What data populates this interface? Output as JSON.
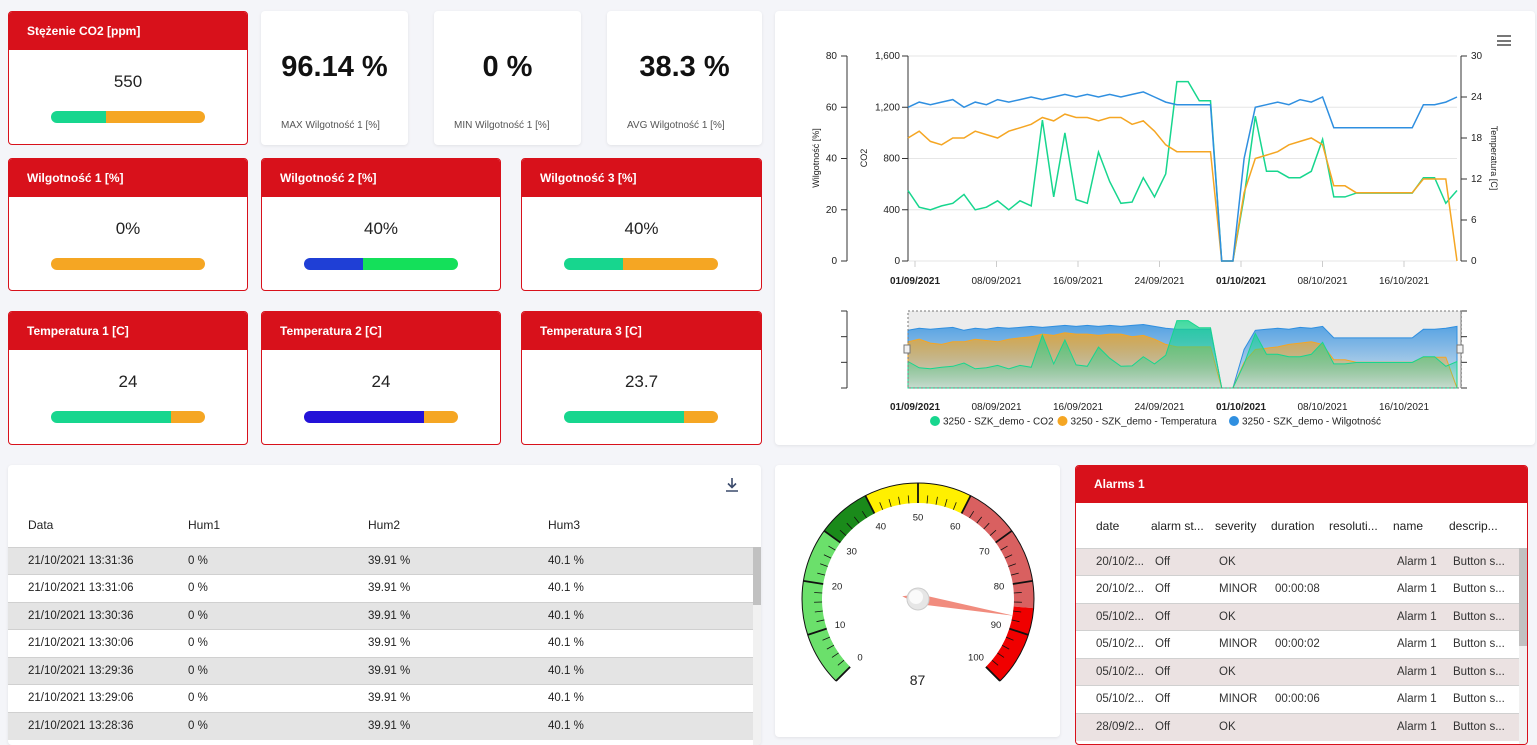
{
  "co2_card": {
    "title": "Stężenie CO2 [ppm]",
    "value": "550",
    "fraction": 0.36
  },
  "stats": [
    {
      "value": "96.14 %",
      "label": "MAX Wilgotność 1 [%]"
    },
    {
      "value": "0 %",
      "label": "MIN Wilgotność 1 [%]"
    },
    {
      "value": "38.3 %",
      "label": "AVG Wilgotność 1 [%]"
    }
  ],
  "humidity_cards": [
    {
      "title": "Wilgotność 1 [%]",
      "value": "0%",
      "fraction": 0.0,
      "fill": "#f5a623",
      "rest": "#f5a623"
    },
    {
      "title": "Wilgotność 2 [%]",
      "value": "40%",
      "fraction": 0.38,
      "fill": "#1f3fd6",
      "rest": "#14e05a"
    },
    {
      "title": "Wilgotność 3 [%]",
      "value": "40%",
      "fraction": 0.38,
      "fill": "#17d68e",
      "rest": "#f5a623"
    }
  ],
  "temperature_cards": [
    {
      "title": "Temperatura 1 [C]",
      "value": "24",
      "fraction": 0.78,
      "fill": "#17d68e",
      "rest": "#f5a623"
    },
    {
      "title": "Temperatura 2 [C]",
      "value": "24",
      "fraction": 0.78,
      "fill": "#2312d8",
      "rest": "#f5a623"
    },
    {
      "title": "Temperatura 3 [C]",
      "value": "23.7",
      "fraction": 0.78,
      "fill": "#17d68e",
      "rest": "#f5a623"
    }
  ],
  "colors": {
    "brand_red": "#d8111b",
    "co2": "#17d68e",
    "temperature": "#f5a623",
    "humidity": "#2f8fe0"
  },
  "chart_data": {
    "type": "line",
    "x_ticks": [
      "01/09/2021",
      "08/09/2021",
      "16/09/2021",
      "24/09/2021",
      "01/10/2021",
      "08/10/2021",
      "16/10/2021"
    ],
    "axes": {
      "humidity": {
        "label": "Wilgotność [%]",
        "ticks": [
          "80",
          "60",
          "40",
          "20",
          "0"
        ],
        "range": [
          0,
          80
        ]
      },
      "co2": {
        "label": "CO2",
        "ticks": [
          "1,600",
          "1,200",
          "800",
          "400",
          "0"
        ],
        "range": [
          0,
          1600
        ]
      },
      "temperature": {
        "label": "Temperatura [C]",
        "ticks": [
          "30",
          "24",
          "18",
          "12",
          "6",
          "0"
        ],
        "range": [
          0,
          30
        ]
      }
    },
    "series": [
      {
        "name": "3250 - SZK_demo - CO2",
        "color": "#17d68e",
        "axis": "co2",
        "points": [
          [
            0,
            550
          ],
          [
            1,
            420
          ],
          [
            2,
            400
          ],
          [
            3,
            430
          ],
          [
            4,
            450
          ],
          [
            5,
            520
          ],
          [
            6,
            400
          ],
          [
            7,
            420
          ],
          [
            8,
            470
          ],
          [
            9,
            400
          ],
          [
            10,
            470
          ],
          [
            11,
            430
          ],
          [
            12,
            1100
          ],
          [
            13,
            500
          ],
          [
            14,
            1000
          ],
          [
            15,
            480
          ],
          [
            16,
            450
          ],
          [
            17,
            850
          ],
          [
            18,
            620
          ],
          [
            19,
            450
          ],
          [
            20,
            460
          ],
          [
            21,
            650
          ],
          [
            22,
            500
          ],
          [
            23,
            680
          ],
          [
            24,
            1400
          ],
          [
            25,
            1400
          ],
          [
            26,
            1250
          ],
          [
            27,
            1250
          ],
          [
            28,
            0
          ],
          [
            29,
            0
          ],
          [
            30,
            500
          ],
          [
            31,
            1130
          ],
          [
            32,
            700
          ],
          [
            33,
            700
          ],
          [
            34,
            650
          ],
          [
            35,
            650
          ],
          [
            36,
            700
          ],
          [
            37,
            950
          ],
          [
            38,
            500
          ],
          [
            39,
            500
          ],
          [
            40,
            530
          ],
          [
            41,
            530
          ],
          [
            42,
            530
          ],
          [
            43,
            530
          ],
          [
            44,
            530
          ],
          [
            45,
            530
          ],
          [
            46,
            650
          ],
          [
            47,
            650
          ],
          [
            48,
            450
          ],
          [
            49,
            550
          ]
        ]
      },
      {
        "name": "3250 - SZK_demo - Temperatura",
        "color": "#f5a623",
        "axis": "temperature",
        "points": [
          [
            0,
            18
          ],
          [
            1,
            19
          ],
          [
            2,
            17.5
          ],
          [
            3,
            17
          ],
          [
            4,
            18
          ],
          [
            5,
            18
          ],
          [
            6,
            19
          ],
          [
            7,
            18.5
          ],
          [
            8,
            18
          ],
          [
            9,
            19
          ],
          [
            10,
            19.5
          ],
          [
            11,
            20
          ],
          [
            12,
            21
          ],
          [
            13,
            20.5
          ],
          [
            14,
            21.5
          ],
          [
            15,
            21
          ],
          [
            16,
            21
          ],
          [
            17,
            20.5
          ],
          [
            18,
            21
          ],
          [
            19,
            21
          ],
          [
            20,
            20
          ],
          [
            21,
            20.5
          ],
          [
            22,
            19
          ],
          [
            23,
            17
          ],
          [
            24,
            16
          ],
          [
            25,
            16
          ],
          [
            26,
            16
          ],
          [
            27,
            16
          ],
          [
            28,
            0
          ],
          [
            29,
            0
          ],
          [
            30,
            10
          ],
          [
            31,
            15
          ],
          [
            32,
            15.5
          ],
          [
            33,
            16
          ],
          [
            34,
            17
          ],
          [
            35,
            17.5
          ],
          [
            36,
            18
          ],
          [
            37,
            17
          ],
          [
            38,
            11
          ],
          [
            39,
            11
          ],
          [
            40,
            10
          ],
          [
            41,
            10
          ],
          [
            42,
            10
          ],
          [
            43,
            10
          ],
          [
            44,
            10
          ],
          [
            45,
            10
          ],
          [
            46,
            12
          ],
          [
            47,
            12
          ],
          [
            48,
            12
          ],
          [
            49,
            0
          ]
        ]
      },
      {
        "name": "3250 - SZK_demo - Wilgotność",
        "color": "#2f8fe0",
        "axis": "humidity",
        "points": [
          [
            0,
            60
          ],
          [
            1,
            62
          ],
          [
            2,
            61
          ],
          [
            3,
            62
          ],
          [
            4,
            63
          ],
          [
            5,
            60
          ],
          [
            6,
            62
          ],
          [
            7,
            61
          ],
          [
            8,
            63
          ],
          [
            9,
            62
          ],
          [
            10,
            63
          ],
          [
            11,
            64
          ],
          [
            12,
            63
          ],
          [
            13,
            64
          ],
          [
            14,
            65
          ],
          [
            15,
            64
          ],
          [
            16,
            65
          ],
          [
            17,
            64
          ],
          [
            18,
            65
          ],
          [
            19,
            64
          ],
          [
            20,
            65
          ],
          [
            21,
            66
          ],
          [
            22,
            64
          ],
          [
            23,
            62
          ],
          [
            24,
            61
          ],
          [
            25,
            61
          ],
          [
            26,
            61
          ],
          [
            27,
            61
          ],
          [
            28,
            0
          ],
          [
            29,
            0
          ],
          [
            30,
            40
          ],
          [
            31,
            60
          ],
          [
            32,
            61
          ],
          [
            33,
            62
          ],
          [
            34,
            61
          ],
          [
            35,
            63
          ],
          [
            36,
            62
          ],
          [
            37,
            64
          ],
          [
            38,
            52
          ],
          [
            39,
            52
          ],
          [
            40,
            52
          ],
          [
            41,
            52
          ],
          [
            42,
            52
          ],
          [
            43,
            52
          ],
          [
            44,
            52
          ],
          [
            45,
            52
          ],
          [
            46,
            61
          ],
          [
            47,
            61
          ],
          [
            48,
            62
          ],
          [
            49,
            64
          ]
        ]
      }
    ]
  },
  "table": {
    "columns": [
      "Data",
      "Hum1",
      "Hum2",
      "Hum3"
    ],
    "rows": [
      [
        "21/10/2021 13:31:36",
        "0 %",
        "39.91 %",
        "40.1 %"
      ],
      [
        "21/10/2021 13:31:06",
        "0 %",
        "39.91 %",
        "40.1 %"
      ],
      [
        "21/10/2021 13:30:36",
        "0 %",
        "39.91 %",
        "40.1 %"
      ],
      [
        "21/10/2021 13:30:06",
        "0 %",
        "39.91 %",
        "40.1 %"
      ],
      [
        "21/10/2021 13:29:36",
        "0 %",
        "39.91 %",
        "40.1 %"
      ],
      [
        "21/10/2021 13:29:06",
        "0 %",
        "39.91 %",
        "40.1 %"
      ],
      [
        "21/10/2021 13:28:36",
        "0 %",
        "39.91 %",
        "40.1 %"
      ]
    ]
  },
  "gauge": {
    "value": "87",
    "numeric": 87,
    "ticks": [
      "0",
      "10",
      "20",
      "30",
      "40",
      "50",
      "60",
      "70",
      "80",
      "90",
      "100"
    ]
  },
  "alarms": {
    "title": "Alarms 1",
    "columns": [
      "date",
      "alarm st...",
      "severity",
      "duration",
      "resoluti...",
      "name",
      "descrip..."
    ],
    "rows": [
      [
        "20/10/2...",
        "Off",
        "OK",
        "",
        "",
        "Alarm 1",
        "Button s..."
      ],
      [
        "20/10/2...",
        "Off",
        "MINOR",
        "00:00:08",
        "",
        "Alarm 1",
        "Button s..."
      ],
      [
        "05/10/2...",
        "Off",
        "OK",
        "",
        "",
        "Alarm 1",
        "Button s..."
      ],
      [
        "05/10/2...",
        "Off",
        "MINOR",
        "00:00:02",
        "",
        "Alarm 1",
        "Button s..."
      ],
      [
        "05/10/2...",
        "Off",
        "OK",
        "",
        "",
        "Alarm 1",
        "Button s..."
      ],
      [
        "05/10/2...",
        "Off",
        "MINOR",
        "00:00:06",
        "",
        "Alarm 1",
        "Button s..."
      ],
      [
        "28/09/2...",
        "Off",
        "OK",
        "",
        "",
        "Alarm 1",
        "Button s..."
      ]
    ]
  }
}
